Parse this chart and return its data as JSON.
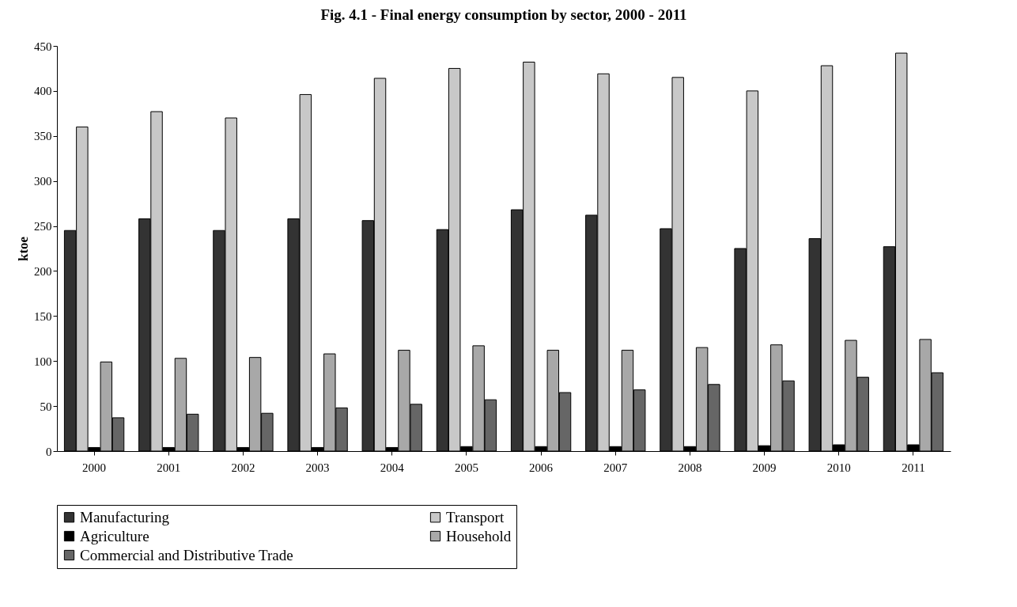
{
  "chart_data": {
    "type": "bar",
    "title": "Fig. 4.1 - Final energy consumption by sector, 2000 - 2011",
    "ylabel": "ktoe",
    "categories": [
      "2000",
      "2001",
      "2002",
      "2003",
      "2004",
      "2005",
      "2006",
      "2007",
      "2008",
      "2009",
      "2010",
      "2011"
    ],
    "series": [
      {
        "name": "Manufacturing",
        "color": "#333333",
        "values": [
          245,
          258,
          245,
          258,
          256,
          246,
          268,
          262,
          247,
          225,
          236,
          227
        ]
      },
      {
        "name": "Transport",
        "color": "#c8c8c8",
        "values": [
          360,
          377,
          370,
          396,
          414,
          425,
          432,
          419,
          415,
          400,
          428,
          442
        ]
      },
      {
        "name": "Agriculture",
        "color": "#000000",
        "values": [
          4,
          4,
          4,
          4,
          4,
          5,
          5,
          5,
          5,
          6,
          7,
          7
        ]
      },
      {
        "name": "Household",
        "color": "#a8a8a8",
        "values": [
          99,
          103,
          104,
          108,
          112,
          117,
          112,
          112,
          115,
          118,
          123,
          124
        ]
      },
      {
        "name": "Commercial and Distributive Trade",
        "color": "#666666",
        "values": [
          37,
          41,
          42,
          48,
          52,
          57,
          65,
          68,
          74,
          78,
          82,
          87
        ]
      }
    ],
    "ylim": [
      0,
      450
    ],
    "yticks": [
      0,
      50,
      100,
      150,
      200,
      250,
      300,
      350,
      400,
      450
    ],
    "grid": false,
    "legend": "bottom"
  }
}
